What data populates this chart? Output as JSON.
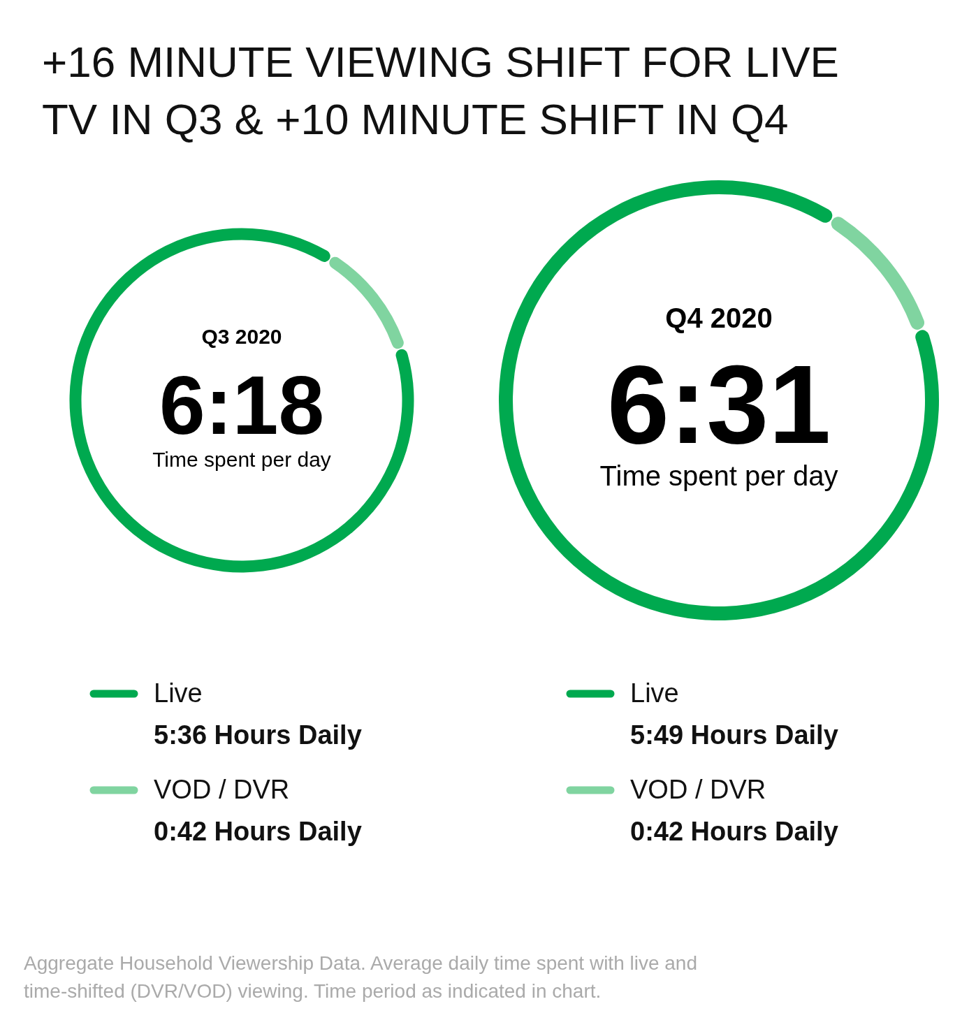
{
  "chart_data": [
    {
      "type": "other",
      "title": "+16 MINUTE VIEWING SHIFT FOR LIVE TV IN Q3 & +10 MINUTE SHIFT IN Q4",
      "annotations": [
        "Aggregate Household Viewership Data. Average daily time spent with live and time-shifted (DVR/VOD) viewing. Time period as indicated in chart."
      ]
    },
    {
      "type": "donut",
      "title": "Q3 2020",
      "categories": [
        "VOD / DVR",
        "Live"
      ],
      "values": [
        42,
        336
      ],
      "colors": [
        "#80d4a0",
        "#00a94f"
      ],
      "value_labels": [
        "0:42 Hours Daily",
        "5:36 Hours Daily"
      ],
      "annotations": [
        "6:18",
        "Time spent per day"
      ],
      "legend": "bottom"
    },
    {
      "type": "donut",
      "title": "Q4 2020",
      "categories": [
        "VOD / DVR",
        "Live"
      ],
      "values": [
        42,
        349
      ],
      "colors": [
        "#80d4a0",
        "#00a94f"
      ],
      "value_labels": [
        "0:42 Hours Daily",
        "5:49 Hours Daily"
      ],
      "annotations": [
        "6:31",
        "Time spent per day"
      ],
      "legend": "bottom"
    }
  ]
}
